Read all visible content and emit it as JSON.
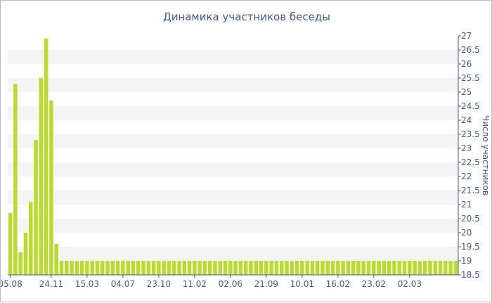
{
  "colors": {
    "bar": "#b8dc2c",
    "band": "#f4f4f4",
    "axis": "#3e5a94",
    "text": "#3e5a94",
    "border": "#b9bcc2"
  },
  "chart_data": {
    "type": "bar",
    "title": "Динамика участников беседы",
    "xlabel": "",
    "ylabel": "Число участников",
    "ylim": [
      18.5,
      27
    ],
    "y_ticks": [
      18.5,
      19,
      19.5,
      20,
      20.5,
      21,
      21.5,
      22,
      22.5,
      23,
      23.5,
      24,
      24.5,
      25,
      25.5,
      26,
      26.5,
      27
    ],
    "y_axis_position": "right",
    "grid": "horizontal alternating bands",
    "legend": "none",
    "x_tick_labels": [
      "05.08",
      "24.11",
      "15.03",
      "04.07",
      "23.10",
      "11.02",
      "02.06",
      "21.09",
      "10.01",
      "16.02",
      "23.02",
      "02.03"
    ],
    "x_tick_bar_index": [
      0,
      8,
      15,
      22,
      29,
      36,
      43,
      50,
      57,
      64,
      71,
      78
    ],
    "values": [
      20.7,
      25.3,
      19.3,
      20.0,
      21.1,
      23.3,
      25.5,
      26.9,
      24.7,
      19.6,
      19,
      19,
      19,
      19,
      19,
      19,
      19,
      19,
      19,
      19,
      19,
      19,
      19,
      19,
      19,
      19,
      19,
      19,
      19,
      19,
      19,
      19,
      19,
      19,
      19,
      19,
      19,
      19,
      19,
      19,
      19,
      19,
      19,
      19,
      19,
      19,
      19,
      19,
      19,
      19,
      19,
      19,
      19,
      19,
      19,
      19,
      19,
      19,
      19,
      19,
      19,
      19,
      19,
      19,
      19,
      19,
      19,
      19,
      19,
      19,
      19,
      19,
      19,
      19,
      19,
      19,
      19,
      19,
      19,
      19,
      19,
      19,
      19,
      19,
      19,
      19,
      19,
      19
    ]
  }
}
